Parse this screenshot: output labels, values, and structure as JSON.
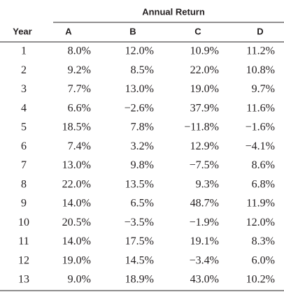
{
  "table": {
    "group_header": "Annual Return",
    "columns": [
      "Year",
      "A",
      "B",
      "C",
      "D"
    ],
    "rows": [
      [
        "1",
        "8.0%",
        "12.0%",
        "10.9%",
        "11.2%"
      ],
      [
        "2",
        "9.2%",
        "8.5%",
        "22.0%",
        "10.8%"
      ],
      [
        "3",
        "7.7%",
        "13.0%",
        "19.0%",
        "9.7%"
      ],
      [
        "4",
        "6.6%",
        "−2.6%",
        "37.9%",
        "11.6%"
      ],
      [
        "5",
        "18.5%",
        "7.8%",
        "−11.8%",
        "−1.6%"
      ],
      [
        "6",
        "7.4%",
        "3.2%",
        "12.9%",
        "−4.1%"
      ],
      [
        "7",
        "13.0%",
        "9.8%",
        "−7.5%",
        "8.6%"
      ],
      [
        "8",
        "22.0%",
        "13.5%",
        "9.3%",
        "6.8%"
      ],
      [
        "9",
        "14.0%",
        "6.5%",
        "48.7%",
        "11.9%"
      ],
      [
        "10",
        "20.5%",
        "−3.5%",
        "−1.9%",
        "12.0%"
      ],
      [
        "11",
        "14.0%",
        "17.5%",
        "19.1%",
        "8.3%"
      ],
      [
        "12",
        "19.0%",
        "14.5%",
        "−3.4%",
        "6.0%"
      ],
      [
        "13",
        "9.0%",
        "18.9%",
        "43.0%",
        "10.2%"
      ]
    ]
  }
}
